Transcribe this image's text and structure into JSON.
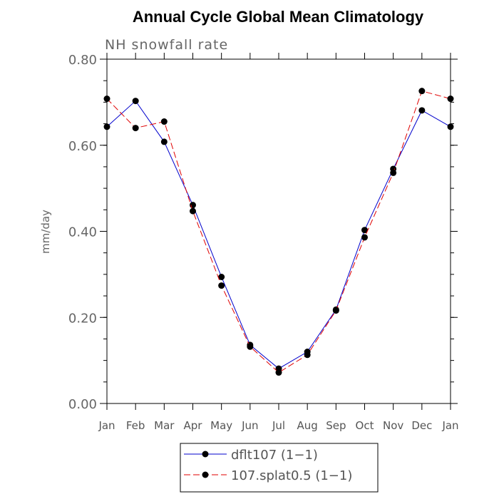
{
  "chart_data": {
    "type": "line",
    "title": "Annual Cycle Global Mean Climatology",
    "subtitle": "NH snowfall rate",
    "ylabel": "mm/day",
    "xlabel": "",
    "categories": [
      "Jan",
      "Feb",
      "Mar",
      "Apr",
      "May",
      "Jun",
      "Jul",
      "Aug",
      "Sep",
      "Oct",
      "Nov",
      "Dec",
      "Jan"
    ],
    "ylim": [
      0,
      0.8
    ],
    "yticks": [
      "0.00",
      "0.20",
      "0.40",
      "0.60",
      "0.80"
    ],
    "ytick_values": [
      0,
      0.2,
      0.4,
      0.6,
      0.8
    ],
    "grid": false,
    "legend_position": "bottom",
    "series": [
      {
        "name": "dflt107 (1−1)",
        "color": "#0000cc",
        "dash": "solid",
        "values": [
          0.643,
          0.703,
          0.608,
          0.461,
          0.294,
          0.136,
          0.081,
          0.12,
          0.218,
          0.403,
          0.545,
          0.681,
          0.643
        ]
      },
      {
        "name": "107.splat0.5 (1−1)",
        "color": "#e00000",
        "dash": "dashed",
        "values": [
          0.708,
          0.64,
          0.655,
          0.447,
          0.274,
          0.132,
          0.072,
          0.113,
          0.216,
          0.386,
          0.536,
          0.726,
          0.708
        ]
      }
    ]
  }
}
